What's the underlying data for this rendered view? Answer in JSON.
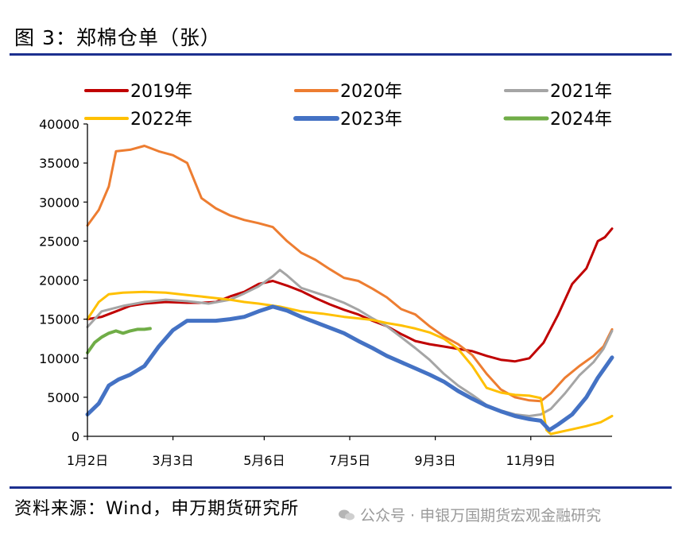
{
  "header": {
    "title": "图 3：郑棉仓单（张）"
  },
  "footer": {
    "source": "资料来源：Wind，申万期货研究所",
    "watermark": "公众号 · 申银万国期货宏观金融研究"
  },
  "chart_data": {
    "type": "line",
    "title": "图 3：郑棉仓单（张）",
    "xlabel": "",
    "ylabel": "",
    "ylim": [
      0,
      40000
    ],
    "yticks": [
      0,
      5000,
      10000,
      15000,
      20000,
      25000,
      30000,
      35000,
      40000
    ],
    "xticks": [
      {
        "label": "1月2日",
        "day": 0
      },
      {
        "label": "3月3日",
        "day": 60
      },
      {
        "label": "5月6日",
        "day": 124
      },
      {
        "label": "7月5日",
        "day": 184
      },
      {
        "label": "9月3日",
        "day": 244
      },
      {
        "label": "11月9日",
        "day": 311
      }
    ],
    "xlim_day": [
      0,
      353
    ],
    "x_unit": "days since 1月2日",
    "grid": false,
    "legend_position": "top",
    "series": [
      {
        "name": "2019年",
        "color": "#c00000",
        "width": 3,
        "points": [
          [
            0,
            15000
          ],
          [
            10,
            15300
          ],
          [
            20,
            16000
          ],
          [
            30,
            16700
          ],
          [
            40,
            17000
          ],
          [
            55,
            17200
          ],
          [
            70,
            17100
          ],
          [
            80,
            17100
          ],
          [
            90,
            17200
          ],
          [
            100,
            17900
          ],
          [
            110,
            18500
          ],
          [
            120,
            19500
          ],
          [
            130,
            19900
          ],
          [
            140,
            19300
          ],
          [
            150,
            18600
          ],
          [
            160,
            17700
          ],
          [
            170,
            16900
          ],
          [
            180,
            16200
          ],
          [
            190,
            15600
          ],
          [
            200,
            14800
          ],
          [
            210,
            14100
          ],
          [
            220,
            13100
          ],
          [
            230,
            12200
          ],
          [
            240,
            11800
          ],
          [
            250,
            11500
          ],
          [
            260,
            11200
          ],
          [
            270,
            10900
          ],
          [
            280,
            10300
          ],
          [
            290,
            9800
          ],
          [
            300,
            9600
          ],
          [
            310,
            10000
          ],
          [
            320,
            12000
          ],
          [
            330,
            15500
          ],
          [
            340,
            19500
          ],
          [
            350,
            21500
          ],
          [
            358,
            25000
          ],
          [
            363,
            25500
          ],
          [
            368,
            26600
          ]
        ]
      },
      {
        "name": "2020年",
        "color": "#ed7d31",
        "width": 3,
        "points": [
          [
            0,
            27000
          ],
          [
            8,
            29000
          ],
          [
            15,
            32000
          ],
          [
            20,
            36500
          ],
          [
            30,
            36700
          ],
          [
            40,
            37200
          ],
          [
            50,
            36500
          ],
          [
            60,
            36000
          ],
          [
            70,
            35000
          ],
          [
            80,
            30500
          ],
          [
            90,
            29200
          ],
          [
            100,
            28300
          ],
          [
            110,
            27700
          ],
          [
            120,
            27300
          ],
          [
            130,
            26800
          ],
          [
            140,
            25000
          ],
          [
            150,
            23500
          ],
          [
            160,
            22600
          ],
          [
            170,
            21400
          ],
          [
            180,
            20300
          ],
          [
            190,
            19900
          ],
          [
            200,
            18900
          ],
          [
            210,
            17800
          ],
          [
            220,
            16300
          ],
          [
            230,
            15600
          ],
          [
            240,
            14100
          ],
          [
            250,
            12800
          ],
          [
            260,
            11800
          ],
          [
            270,
            10400
          ],
          [
            280,
            8000
          ],
          [
            290,
            6000
          ],
          [
            300,
            5000
          ],
          [
            310,
            4600
          ],
          [
            318,
            4500
          ],
          [
            325,
            5500
          ],
          [
            335,
            7500
          ],
          [
            345,
            9000
          ],
          [
            355,
            10300
          ],
          [
            362,
            11500
          ],
          [
            368,
            13700
          ]
        ]
      },
      {
        "name": "2021年",
        "color": "#a5a5a5",
        "width": 3,
        "points": [
          [
            0,
            14000
          ],
          [
            10,
            16000
          ],
          [
            25,
            16700
          ],
          [
            40,
            17200
          ],
          [
            55,
            17500
          ],
          [
            70,
            17300
          ],
          [
            85,
            17000
          ],
          [
            100,
            17500
          ],
          [
            110,
            18300
          ],
          [
            120,
            19200
          ],
          [
            130,
            20500
          ],
          [
            135,
            21300
          ],
          [
            140,
            20600
          ],
          [
            150,
            19000
          ],
          [
            160,
            18400
          ],
          [
            170,
            17800
          ],
          [
            180,
            17100
          ],
          [
            190,
            16200
          ],
          [
            200,
            15100
          ],
          [
            210,
            14100
          ],
          [
            220,
            12700
          ],
          [
            230,
            11300
          ],
          [
            240,
            9800
          ],
          [
            250,
            8000
          ],
          [
            260,
            6500
          ],
          [
            270,
            5300
          ],
          [
            280,
            4000
          ],
          [
            290,
            3300
          ],
          [
            300,
            2800
          ],
          [
            310,
            2600
          ],
          [
            318,
            2800
          ],
          [
            325,
            3500
          ],
          [
            335,
            5500
          ],
          [
            345,
            7800
          ],
          [
            355,
            9500
          ],
          [
            362,
            11200
          ],
          [
            368,
            13500
          ]
        ]
      },
      {
        "name": "2022年",
        "color": "#ffc000",
        "width": 3,
        "points": [
          [
            0,
            15000
          ],
          [
            8,
            17200
          ],
          [
            15,
            18200
          ],
          [
            25,
            18400
          ],
          [
            40,
            18500
          ],
          [
            55,
            18400
          ],
          [
            70,
            18100
          ],
          [
            85,
            17800
          ],
          [
            100,
            17500
          ],
          [
            110,
            17200
          ],
          [
            120,
            17000
          ],
          [
            135,
            16600
          ],
          [
            150,
            16000
          ],
          [
            165,
            15700
          ],
          [
            180,
            15300
          ],
          [
            190,
            15100
          ],
          [
            200,
            14900
          ],
          [
            210,
            14500
          ],
          [
            220,
            14200
          ],
          [
            230,
            13800
          ],
          [
            240,
            13300
          ],
          [
            250,
            12500
          ],
          [
            260,
            11200
          ],
          [
            270,
            9000
          ],
          [
            280,
            6200
          ],
          [
            290,
            5600
          ],
          [
            300,
            5300
          ],
          [
            310,
            5200
          ],
          [
            318,
            4900
          ],
          [
            322,
            800
          ],
          [
            325,
            300
          ],
          [
            330,
            500
          ],
          [
            340,
            900
          ],
          [
            350,
            1300
          ],
          [
            360,
            1800
          ],
          [
            368,
            2600
          ]
        ]
      },
      {
        "name": "2023年",
        "color": "#4472c4",
        "width": 5,
        "points": [
          [
            0,
            2800
          ],
          [
            8,
            4200
          ],
          [
            15,
            6500
          ],
          [
            22,
            7300
          ],
          [
            30,
            7900
          ],
          [
            40,
            9000
          ],
          [
            50,
            11500
          ],
          [
            60,
            13600
          ],
          [
            70,
            14800
          ],
          [
            80,
            14800
          ],
          [
            90,
            14800
          ],
          [
            100,
            15000
          ],
          [
            110,
            15300
          ],
          [
            120,
            16000
          ],
          [
            130,
            16600
          ],
          [
            140,
            16100
          ],
          [
            150,
            15300
          ],
          [
            160,
            14600
          ],
          [
            170,
            13900
          ],
          [
            180,
            13200
          ],
          [
            190,
            12200
          ],
          [
            200,
            11300
          ],
          [
            210,
            10300
          ],
          [
            220,
            9500
          ],
          [
            230,
            8700
          ],
          [
            240,
            7900
          ],
          [
            250,
            7000
          ],
          [
            260,
            5800
          ],
          [
            270,
            4800
          ],
          [
            280,
            3900
          ],
          [
            290,
            3200
          ],
          [
            300,
            2600
          ],
          [
            310,
            2200
          ],
          [
            318,
            2000
          ],
          [
            324,
            800
          ],
          [
            330,
            1500
          ],
          [
            340,
            2800
          ],
          [
            350,
            5000
          ],
          [
            358,
            7500
          ],
          [
            365,
            9300
          ],
          [
            368,
            10100
          ]
        ]
      },
      {
        "name": "2024年",
        "color": "#70ad47",
        "width": 4,
        "points": [
          [
            0,
            10700
          ],
          [
            5,
            12000
          ],
          [
            10,
            12700
          ],
          [
            15,
            13200
          ],
          [
            20,
            13500
          ],
          [
            25,
            13200
          ],
          [
            30,
            13500
          ],
          [
            35,
            13700
          ],
          [
            40,
            13700
          ],
          [
            44,
            13800
          ]
        ]
      }
    ]
  }
}
